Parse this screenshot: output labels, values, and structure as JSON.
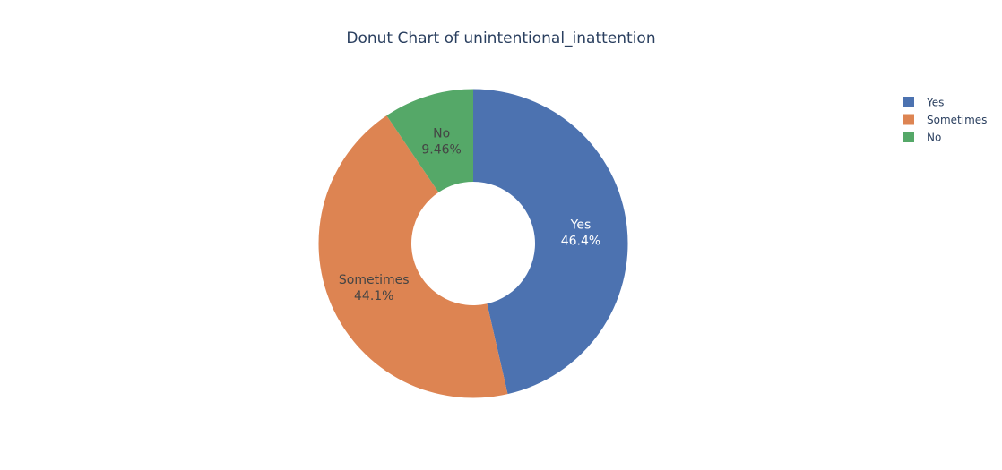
{
  "chart_data": {
    "type": "pie",
    "hole": true,
    "title": "Donut Chart of unintentional_inattention",
    "categories": [
      "Yes",
      "Sometimes",
      "No"
    ],
    "values": [
      46.4,
      44.1,
      9.46
    ],
    "value_labels": [
      "46.4%",
      "44.1%",
      "9.46%"
    ],
    "colors": [
      "#4c72b0",
      "#dd8452",
      "#55a868"
    ],
    "legend": {
      "position": "top-right",
      "entries": [
        "Yes",
        "Sometimes",
        "No"
      ]
    }
  }
}
